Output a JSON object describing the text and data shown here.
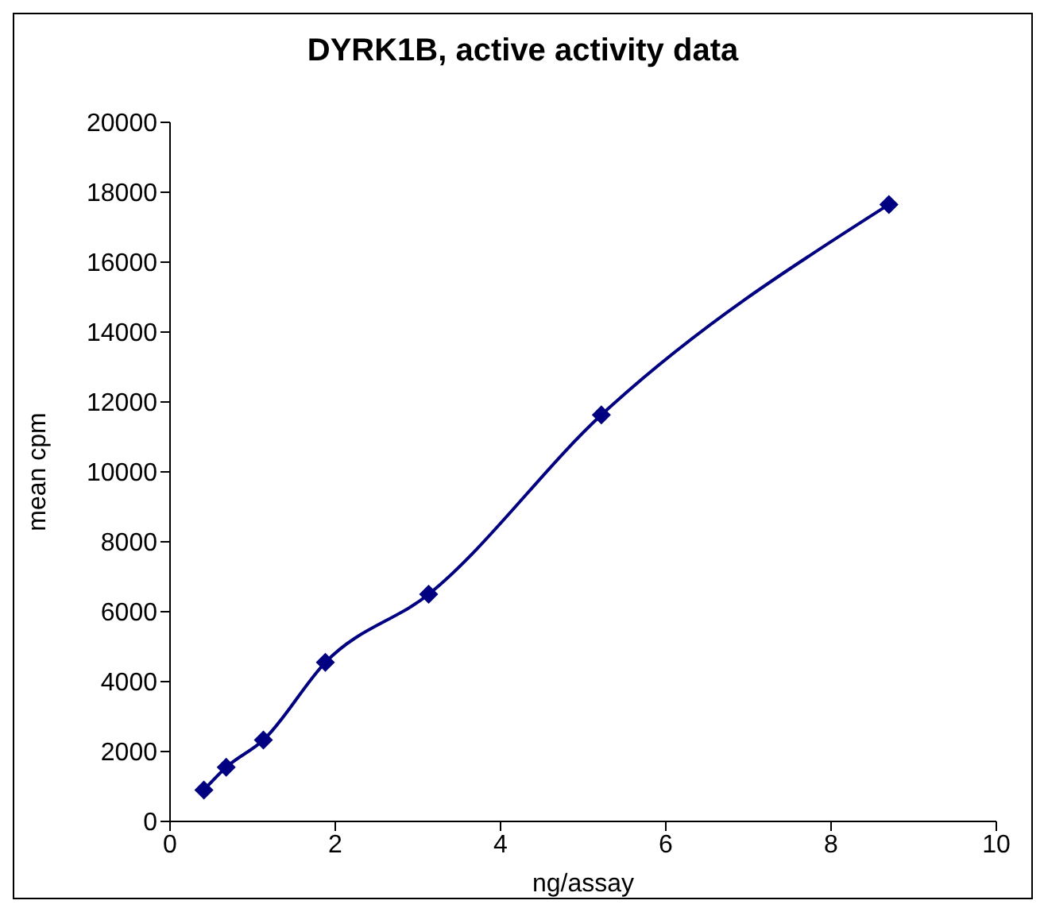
{
  "chart_data": {
    "type": "line",
    "title": "DYRK1B, active activity data",
    "xlabel": "ng/assay",
    "ylabel": "mean cpm",
    "x": [
      0.41,
      0.68,
      1.13,
      1.88,
      3.13,
      5.22,
      8.7
    ],
    "series": [
      {
        "color": "#000080",
        "values": [
          900,
          1550,
          2330,
          4550,
          6500,
          11630,
          17650
        ]
      }
    ],
    "xlim": [
      0,
      10
    ],
    "xticks": [
      0,
      2,
      4,
      6,
      8,
      10
    ],
    "ylim": [
      0,
      20000
    ],
    "yticks": [
      0,
      2000,
      4000,
      6000,
      8000,
      10000,
      12000,
      14000,
      16000,
      18000,
      20000
    ],
    "grid": false,
    "legend": false,
    "marker": "diamond",
    "line_style": "solid"
  }
}
